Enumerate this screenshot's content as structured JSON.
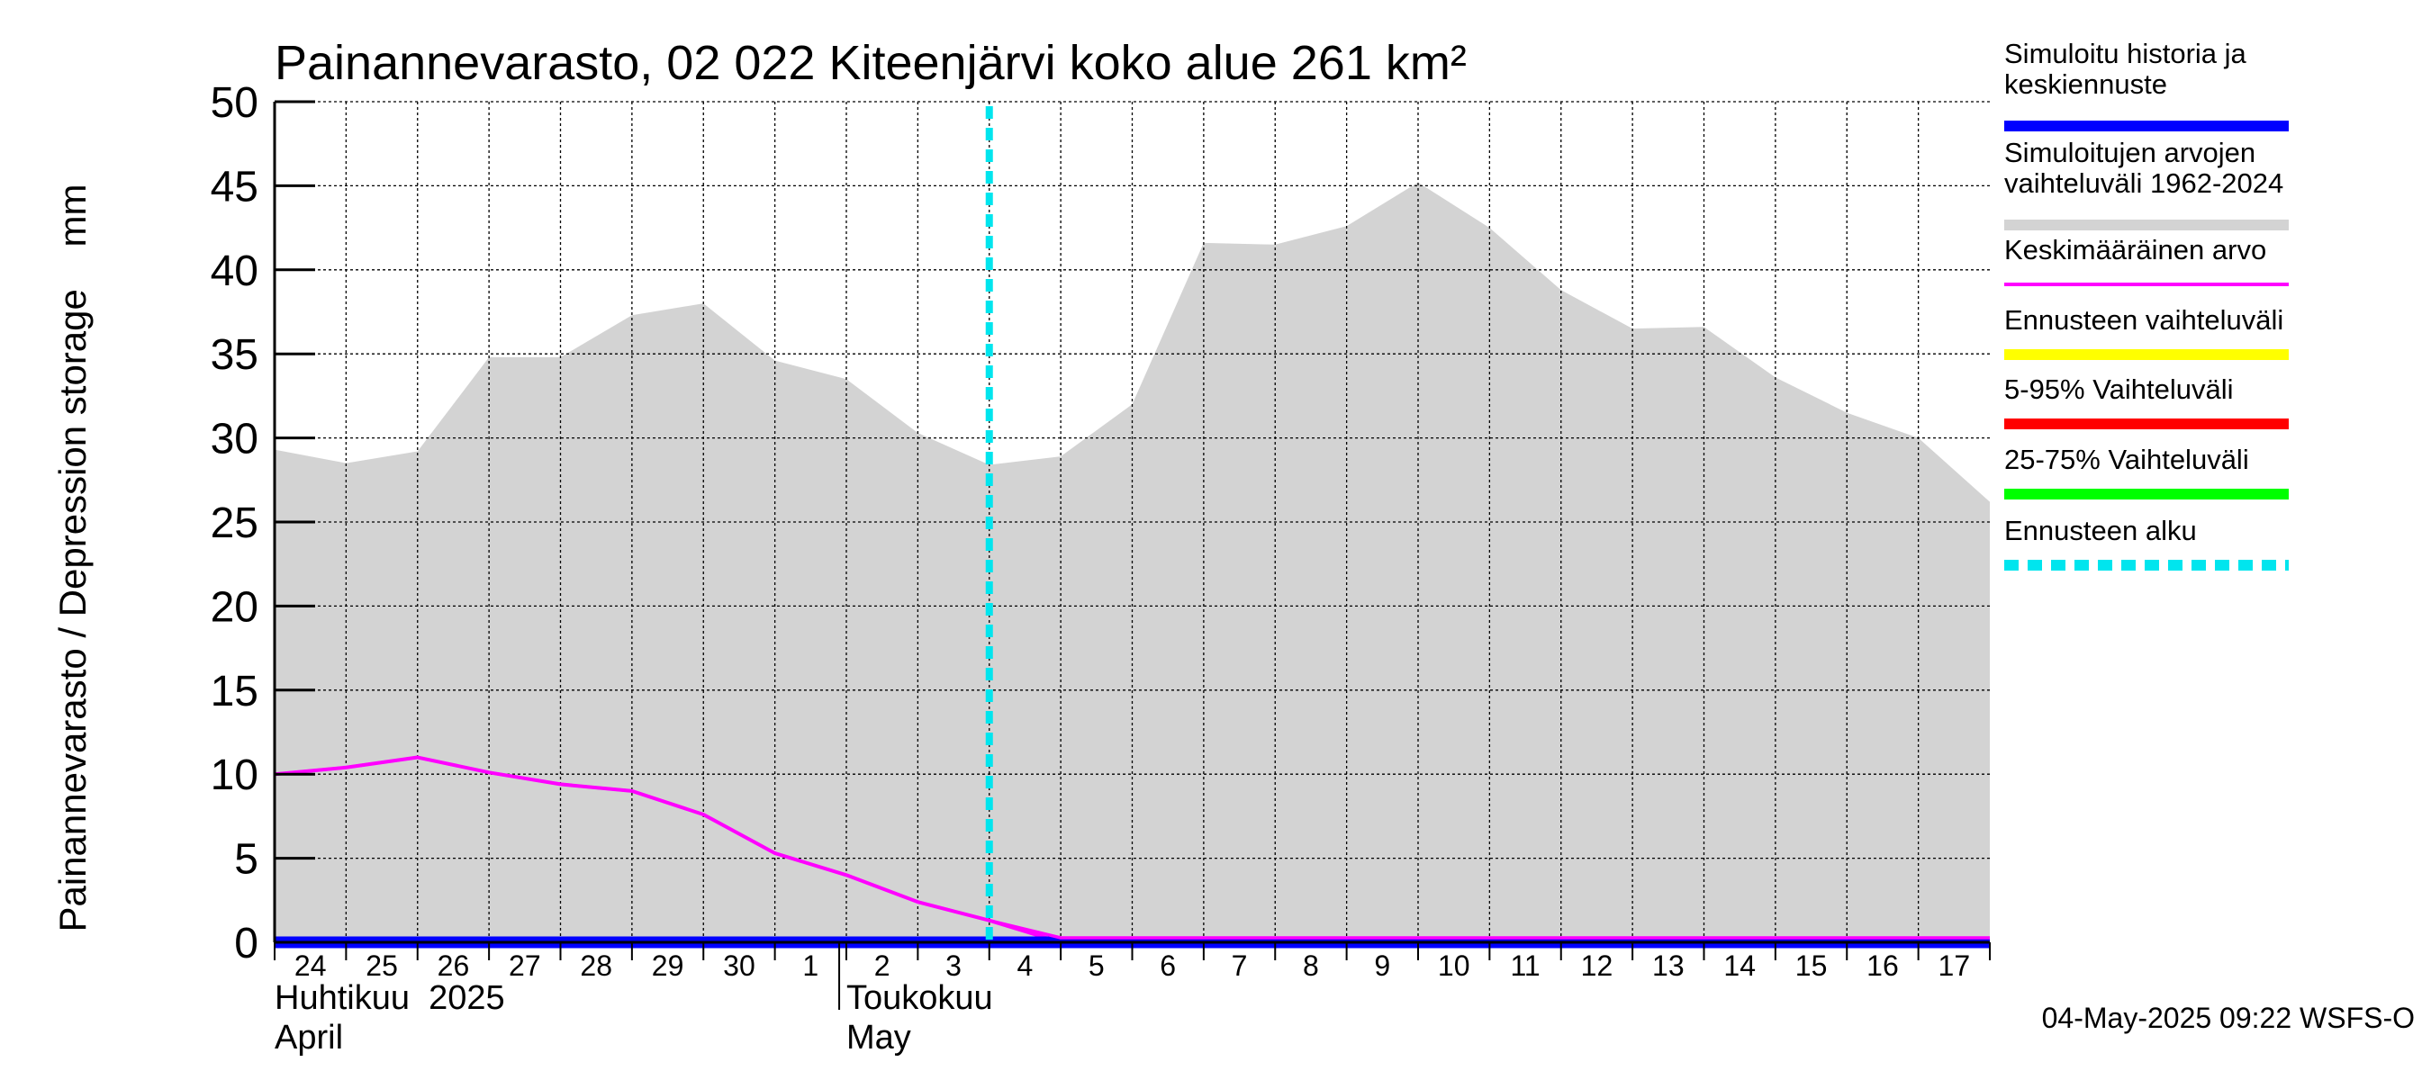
{
  "chart_data": {
    "type": "area",
    "title": "Painannevarasto, 02 022 Kiteenjärvi koko alue 261 km²",
    "ylabel": "Painannevarasto / Depression storage    mm",
    "ylim": [
      0,
      50
    ],
    "yticks": [
      0,
      5,
      10,
      15,
      20,
      25,
      30,
      35,
      40,
      45,
      50
    ],
    "xlim": [
      0,
      24
    ],
    "grid": true,
    "x_tick_labels": [
      "24",
      "25",
      "26",
      "27",
      "28",
      "29",
      "30",
      "1",
      "2",
      "3",
      "4",
      "5",
      "6",
      "7",
      "8",
      "9",
      "10",
      "11",
      "12",
      "13",
      "14",
      "15",
      "16",
      "17"
    ],
    "months": [
      {
        "fi": "Huhtikuu  2025",
        "en": "April",
        "start_index": 0
      },
      {
        "fi": "Toukokuu",
        "en": "May",
        "start_index": 8
      }
    ],
    "forecast_start_x": 10,
    "series": [
      {
        "name": "Simuloitujen arvojen vaihteluväli 1962-2024",
        "kind": "band",
        "color": "#d3d3d3",
        "x": [
          0,
          1,
          2,
          3,
          4,
          5,
          6,
          7,
          8,
          9,
          10,
          11,
          12,
          13,
          14,
          15,
          16,
          17,
          18,
          19,
          20,
          21,
          22,
          23,
          24
        ],
        "upper": [
          29.3,
          28.5,
          29.2,
          34.8,
          34.8,
          37.3,
          38.0,
          34.6,
          33.5,
          30.3,
          28.4,
          28.9,
          32.0,
          41.6,
          41.5,
          42.6,
          45.2,
          42.5,
          38.8,
          36.5,
          36.6,
          33.6,
          31.5,
          30.0,
          26.2
        ],
        "lower": [
          0,
          0,
          0,
          0,
          0,
          0,
          0,
          0,
          0,
          0,
          0,
          0,
          0,
          0,
          0,
          0,
          0,
          0,
          0,
          0,
          0,
          0,
          0,
          0,
          0
        ]
      },
      {
        "name": "Keskimääräinen arvo",
        "kind": "line",
        "color": "#ff00ff",
        "x": [
          0,
          1,
          2,
          3,
          4,
          5,
          6,
          7,
          8,
          9,
          10,
          11,
          12,
          13,
          14,
          15,
          16,
          17,
          18,
          19,
          20,
          21,
          22,
          23,
          24
        ],
        "values": [
          10.0,
          10.4,
          11.0,
          10.1,
          9.4,
          9.0,
          7.6,
          5.3,
          4.0,
          2.4,
          1.3,
          0.0,
          0.0,
          0.0,
          0.0,
          0.0,
          0.0,
          0.0,
          0.0,
          0.0,
          0.0,
          0.0,
          0.0,
          0.0,
          0.0
        ]
      },
      {
        "name": "Simuloitu historia ja keskiennuste",
        "kind": "line",
        "color": "#0000ff",
        "x": [
          0,
          24
        ],
        "values": [
          0.0,
          0.0
        ]
      }
    ]
  },
  "legend": {
    "items": [
      {
        "label1": "Simuloitu historia ja",
        "label2": "keskiennuste",
        "color": "#0000ff",
        "style": "solid"
      },
      {
        "label1": "Simuloitujen arvojen",
        "label2": "vaihteluväli 1962-2024",
        "color": "#d3d3d3",
        "style": "solid"
      },
      {
        "label1": "Keskimääräinen arvo",
        "label2": "",
        "color": "#ff00ff",
        "style": "thin"
      },
      {
        "label1": "Ennusteen vaihteluväli",
        "label2": "",
        "color": "#ffff00",
        "style": "solid"
      },
      {
        "label1": "5-95% Vaihteluväli",
        "label2": "",
        "color": "#ff0000",
        "style": "solid"
      },
      {
        "label1": "25-75% Vaihteluväli",
        "label2": "",
        "color": "#00ff00",
        "style": "solid"
      },
      {
        "label1": "Ennusteen alku",
        "label2": "",
        "color": "#00e5ee",
        "style": "dashed"
      }
    ]
  },
  "footer": "04-May-2025 09:22 WSFS-O"
}
